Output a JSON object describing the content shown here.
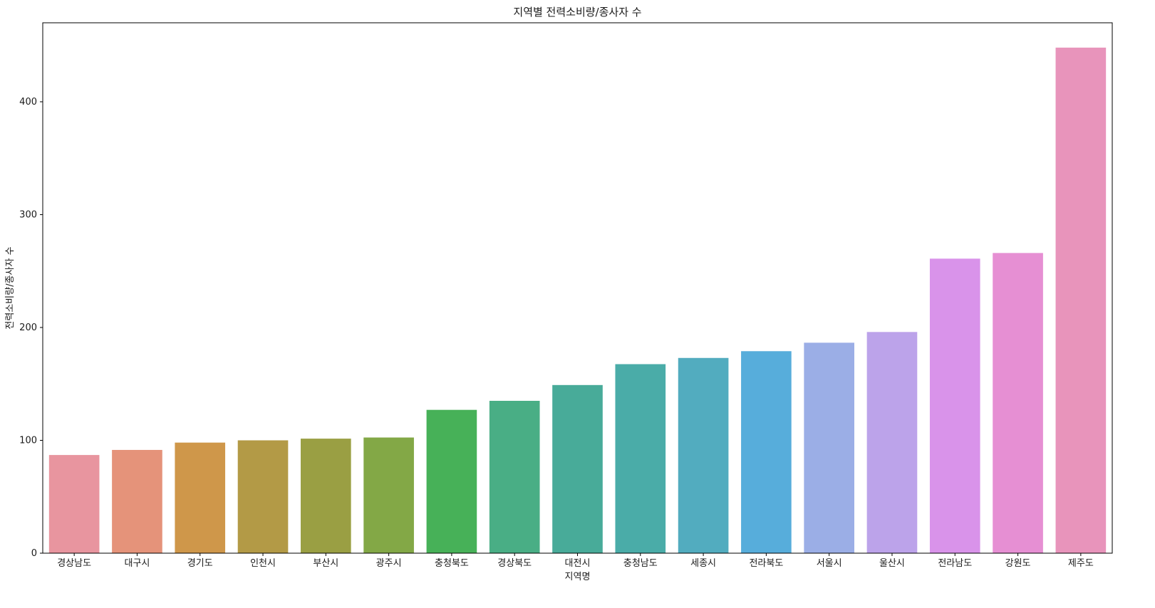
{
  "chart_data": {
    "type": "bar",
    "title": "지역별 전력소비량/종사자 수",
    "xlabel": "지역명",
    "ylabel": "전력소비량/종사자 수",
    "categories": [
      "경상남도",
      "대구시",
      "경기도",
      "인천시",
      "부산시",
      "광주시",
      "충청북도",
      "경상북도",
      "대전시",
      "충청남도",
      "세종시",
      "전라북도",
      "서울시",
      "울산시",
      "전라남도",
      "강원도",
      "제주도"
    ],
    "values": [
      87,
      91.5,
      98,
      100,
      101.5,
      102.5,
      127,
      135,
      149,
      167.5,
      173,
      179,
      186.5,
      196,
      261,
      266,
      448
    ],
    "colors": [
      "#e8959f",
      "#e5937a",
      "#cf974a",
      "#b39a46",
      "#9a9f43",
      "#83a846",
      "#47b158",
      "#49ae85",
      "#48ab99",
      "#4aaca8",
      "#52acbf",
      "#57addb",
      "#9baee6",
      "#bca3ea",
      "#d993ea",
      "#e68fd3",
      "#e894bb"
    ],
    "ylim": [
      0,
      470
    ],
    "yticks": [
      0,
      100,
      200,
      300,
      400
    ],
    "grid": false,
    "legend": "none"
  }
}
